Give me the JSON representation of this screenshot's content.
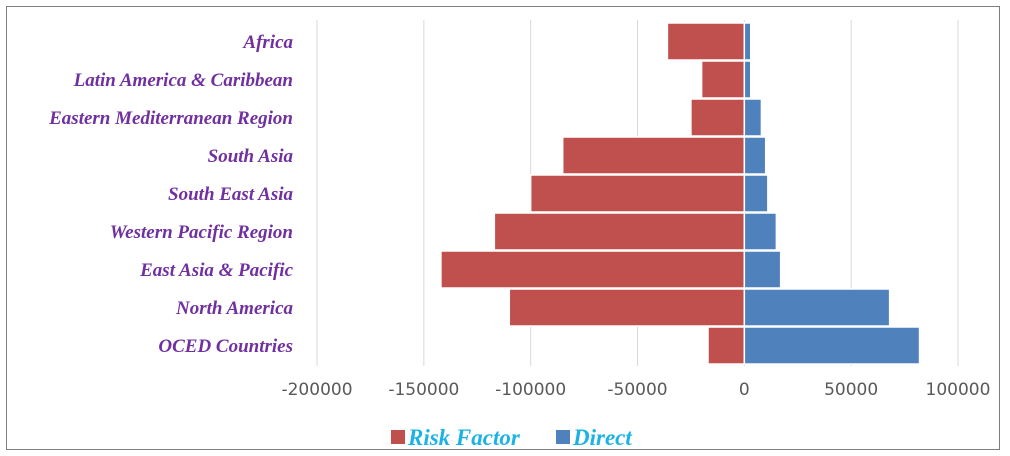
{
  "chart_data": {
    "type": "bar",
    "orientation": "horizontal",
    "categories": [
      "Africa",
      "Latin America & Caribbean",
      "Eastern Mediterranean Region",
      "South Asia",
      "South East Asia",
      "Western Pacific Region",
      "East Asia & Pacific",
      "North America",
      "OCED Countries"
    ],
    "series": [
      {
        "name": "Risk Factor",
        "color": "#c0504d",
        "values": [
          -36000,
          -20000,
          -25000,
          -85000,
          -100000,
          -117000,
          -142000,
          -110000,
          -17000
        ]
      },
      {
        "name": "Direct",
        "color": "#4f81bd",
        "values": [
          3000,
          3000,
          8000,
          10000,
          11000,
          15000,
          17000,
          68000,
          82000
        ]
      }
    ],
    "xlim": [
      -200000,
      100000
    ],
    "xticks": [
      "-200000",
      "-150000",
      "-100000",
      "-50000",
      "0",
      "50000",
      "100000"
    ],
    "grid": true,
    "legend_position": "bottom",
    "title": "",
    "xlabel": "",
    "ylabel": ""
  }
}
